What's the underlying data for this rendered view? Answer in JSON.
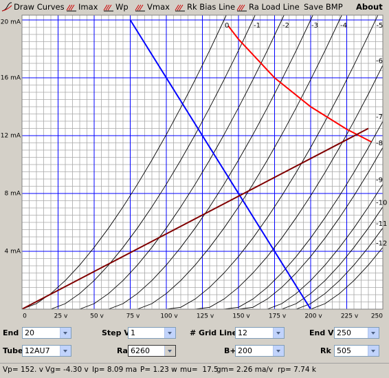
{
  "toolbar": {
    "buttons": [
      "Draw Curves",
      "Imax",
      "Wp",
      "Vmax",
      "Rk Bias Line",
      "Ra Load Line",
      "Save BMP",
      "About"
    ]
  },
  "chart_data": {
    "type": "line",
    "x": [
      0,
      10,
      20,
      30,
      40,
      50,
      60,
      70,
      80,
      90,
      100,
      110,
      120,
      130,
      140,
      150,
      160,
      170,
      180,
      190,
      200,
      210,
      220,
      230,
      240,
      250
    ],
    "series": [
      {
        "name": "0",
        "color": "#000000",
        "values": [
          0,
          0.38,
          1.08,
          1.98,
          3.05,
          4.27,
          5.61,
          7.07,
          8.64,
          10.31,
          12.07,
          13.93,
          15.87,
          17.89,
          20.0,
          22.17,
          null,
          null,
          null,
          null,
          null,
          null,
          null,
          null,
          null,
          null
        ]
      },
      {
        "name": "-1",
        "color": "#000000",
        "values": [
          null,
          null,
          0,
          0.38,
          1.08,
          1.98,
          3.05,
          4.27,
          5.61,
          7.07,
          8.64,
          10.31,
          12.07,
          13.93,
          15.87,
          17.89,
          20.0,
          22.17,
          null,
          null,
          null,
          null,
          null,
          null,
          null,
          null
        ]
      },
      {
        "name": "-2",
        "color": "#000000",
        "values": [
          null,
          null,
          null,
          null,
          0,
          0.38,
          1.08,
          1.98,
          3.05,
          4.27,
          5.61,
          7.07,
          8.64,
          10.31,
          12.07,
          13.93,
          15.87,
          17.89,
          20.0,
          22.17,
          null,
          null,
          null,
          null,
          null,
          null
        ]
      },
      {
        "name": "-3",
        "color": "#000000",
        "values": [
          null,
          null,
          null,
          null,
          null,
          null,
          0,
          0.38,
          1.08,
          1.98,
          3.05,
          4.27,
          5.61,
          7.07,
          8.64,
          10.31,
          12.07,
          13.93,
          15.87,
          17.89,
          20.0,
          22.17,
          null,
          null,
          null,
          null
        ]
      },
      {
        "name": "-4",
        "color": "#000000",
        "values": [
          null,
          null,
          null,
          null,
          null,
          null,
          null,
          null,
          0,
          0.38,
          1.08,
          1.98,
          3.05,
          4.27,
          5.61,
          7.07,
          8.64,
          10.31,
          12.07,
          13.93,
          15.87,
          17.89,
          20.0,
          22.17,
          null,
          null
        ]
      },
      {
        "name": "-5",
        "color": "#000000",
        "values": [
          null,
          null,
          null,
          null,
          null,
          null,
          null,
          null,
          null,
          null,
          0,
          0.13,
          0.7,
          1.51,
          2.5,
          3.64,
          4.92,
          6.33,
          7.84,
          9.46,
          11.18,
          12.99,
          14.88,
          16.87,
          18.94,
          21.07
        ]
      },
      {
        "name": "-6",
        "color": "#000000",
        "values": [
          null,
          null,
          null,
          null,
          null,
          null,
          null,
          null,
          null,
          null,
          null,
          null,
          0,
          0.13,
          0.7,
          1.51,
          2.5,
          3.64,
          4.92,
          6.33,
          7.84,
          9.46,
          11.18,
          12.99,
          14.88,
          16.87
        ]
      },
      {
        "name": "-7",
        "color": "#000000",
        "values": [
          null,
          null,
          null,
          null,
          null,
          null,
          null,
          null,
          null,
          null,
          null,
          null,
          null,
          null,
          0,
          0.13,
          0.7,
          1.51,
          2.5,
          3.64,
          4.92,
          6.33,
          7.84,
          9.46,
          11.18,
          12.99
        ]
      },
      {
        "name": "-8",
        "color": "#000000",
        "values": [
          null,
          null,
          null,
          null,
          null,
          null,
          null,
          null,
          null,
          null,
          null,
          null,
          null,
          null,
          null,
          0,
          0.13,
          0.7,
          1.51,
          2.5,
          3.64,
          4.92,
          6.33,
          7.84,
          9.46,
          11.18
        ]
      },
      {
        "name": "-9",
        "color": "#000000",
        "values": [
          null,
          null,
          null,
          null,
          null,
          null,
          null,
          null,
          null,
          null,
          null,
          null,
          null,
          null,
          null,
          null,
          null,
          0,
          0.38,
          1.08,
          1.98,
          3.05,
          4.27,
          5.61,
          7.07,
          8.64
        ]
      },
      {
        "name": "-10",
        "color": "#000000",
        "values": [
          null,
          null,
          null,
          null,
          null,
          null,
          null,
          null,
          null,
          null,
          null,
          null,
          null,
          null,
          null,
          null,
          null,
          null,
          0,
          0.38,
          1.08,
          1.98,
          3.05,
          4.27,
          5.61,
          7.07
        ]
      },
      {
        "name": "-11",
        "color": "#000000",
        "values": [
          null,
          null,
          null,
          null,
          null,
          null,
          null,
          null,
          null,
          null,
          null,
          null,
          null,
          null,
          null,
          null,
          null,
          null,
          null,
          0,
          0.38,
          1.08,
          1.98,
          3.05,
          4.27,
          5.61
        ]
      },
      {
        "name": "-12",
        "color": "#000000",
        "values": [
          null,
          null,
          null,
          null,
          null,
          null,
          null,
          null,
          null,
          null,
          null,
          null,
          null,
          null,
          null,
          null,
          null,
          null,
          null,
          null,
          0,
          0.38,
          1.08,
          1.98,
          3.05,
          4.27
        ]
      }
    ],
    "lines": [
      {
        "color": "#0000ff",
        "x": [
          75,
          200
        ],
        "values": [
          20,
          0
        ]
      },
      {
        "color": "#ff0000",
        "x": [
          143,
          150,
          175,
          200,
          225,
          242
        ],
        "values": [
          19.58,
          18.67,
          16,
          14,
          12.44,
          11.57
        ]
      },
      {
        "color": "#800000",
        "x": [
          0,
          240
        ],
        "values": [
          0,
          12.5
        ]
      }
    ],
    "xlim": [
      0,
      250
    ],
    "ylim": [
      0,
      20
    ],
    "xticks": [
      0,
      {
        "value": 25,
        "label": "25 v"
      },
      {
        "value": 50,
        "label": "50 v"
      },
      {
        "value": 75,
        "label": "75 v"
      },
      {
        "value": 100,
        "label": "100 v"
      },
      {
        "value": 125,
        "label": "125 v"
      },
      {
        "value": 150,
        "label": "150 v"
      },
      {
        "value": 175,
        "label": "175 v"
      },
      {
        "value": 200,
        "label": "200 v"
      },
      {
        "value": 225,
        "label": "225 v"
      },
      250
    ],
    "yticks": [
      {
        "value": 4,
        "label": "4 mA"
      },
      {
        "value": 8,
        "label": "8 mA"
      },
      {
        "value": 12,
        "label": "12 mA"
      },
      {
        "value": 16,
        "label": "16 mA"
      },
      {
        "value": 20,
        "label": "20 mA"
      }
    ],
    "minor_xticks": [
      0,
      5,
      10,
      15,
      20,
      25,
      30,
      35,
      40,
      45,
      50,
      55,
      60,
      65,
      70,
      75,
      80,
      85,
      90,
      95,
      100,
      105,
      110,
      115,
      120,
      125,
      130,
      135,
      140,
      145,
      150,
      155,
      160,
      165,
      170,
      175,
      180,
      185,
      190,
      195,
      200,
      205,
      210,
      215,
      220,
      225,
      230,
      235,
      240,
      245,
      250
    ],
    "minor_yticks": [
      0,
      0.5,
      1,
      1.5,
      2,
      2.5,
      3,
      3.5,
      4,
      4.5,
      5,
      5.5,
      6,
      6.5,
      7,
      7.5,
      8,
      8.5,
      9,
      9.5,
      10,
      10.5,
      11,
      11.5,
      12,
      12.5,
      13,
      13.5,
      14,
      14.5,
      15,
      15.5,
      16,
      16.5,
      17,
      17.5,
      18,
      18.5,
      19,
      19.5,
      20
    ],
    "grid_color": "#0000ff",
    "minor_grid_color": "#a8a8a8"
  },
  "controls": [
    {
      "label": "End I",
      "value": "20"
    },
    {
      "label": "Step V",
      "value": "1"
    },
    {
      "label": "# Grid Lines",
      "value": "12"
    },
    {
      "label": "End V",
      "value": "250"
    },
    {
      "label": "Tube",
      "value": "12AU7"
    },
    {
      "label": "Ra",
      "value": "6260"
    },
    {
      "label": "B+",
      "value": "200"
    },
    {
      "label": "Rk",
      "value": "505"
    }
  ],
  "status": [
    "Vp= 152. v",
    "Vg= -4.30 v",
    "Ip= 8.09 ma",
    "P= 1.23 w",
    "mu=  17.5",
    "gm= 2.26 ma/v",
    "rp= 7.74 k"
  ]
}
